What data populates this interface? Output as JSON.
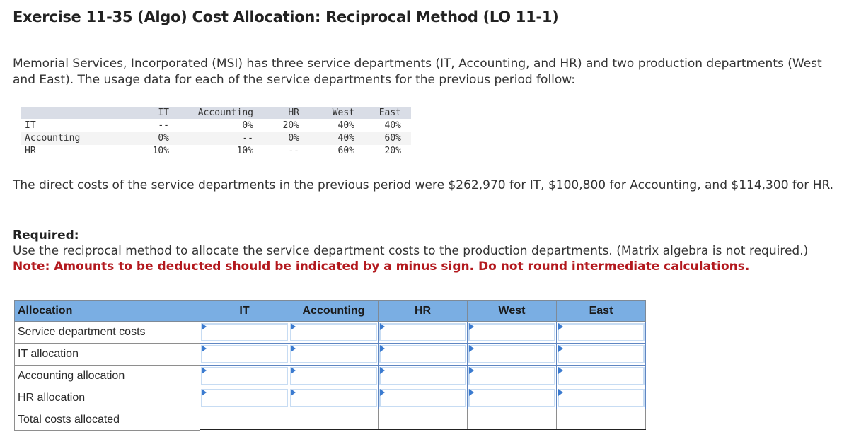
{
  "title": "Exercise 11-35 (Algo) Cost Allocation: Reciprocal Method (LO 11-1)",
  "intro": "Memorial Services, Incorporated (MSI) has three service departments (IT, Accounting, and HR) and two production departments (West and East). The usage data for each of the service departments for the previous period follow:",
  "usage_table": {
    "headers": [
      "",
      "IT",
      "Accounting",
      "HR",
      "West",
      "East"
    ],
    "rows": [
      {
        "label": "IT",
        "values": [
          "--",
          "0%",
          "20%",
          "40%",
          "40%"
        ]
      },
      {
        "label": "Accounting",
        "values": [
          "0%",
          "--",
          "0%",
          "40%",
          "60%"
        ]
      },
      {
        "label": "HR",
        "values": [
          "10%",
          "10%",
          "--",
          "60%",
          "20%"
        ]
      }
    ]
  },
  "direct_costs_text": "The direct costs of the service departments in the previous period were $262,970 for IT, $100,800 for Accounting, and $114,300 for HR.",
  "required": {
    "label": "Required:",
    "instruction": "Use the reciprocal method to allocate the service department costs to the production departments. (Matrix algebra is not required.)",
    "note": "Note: Amounts to be deducted should be indicated by a minus sign. Do not round intermediate calculations."
  },
  "allocation_table": {
    "headers": [
      "Allocation",
      "IT",
      "Accounting",
      "HR",
      "West",
      "East"
    ],
    "rows": [
      {
        "label": "Service department costs",
        "values": [
          "",
          "",
          "",
          "",
          ""
        ]
      },
      {
        "label": "IT allocation",
        "values": [
          "",
          "",
          "",
          "",
          ""
        ]
      },
      {
        "label": "Accounting allocation",
        "values": [
          "",
          "",
          "",
          "",
          ""
        ]
      },
      {
        "label": "HR allocation",
        "values": [
          "",
          "",
          "",
          "",
          ""
        ]
      },
      {
        "label": "Total costs allocated",
        "values": [
          "",
          "",
          "",
          "",
          ""
        ]
      }
    ]
  },
  "colors": {
    "header_blue": "#7aaee3",
    "note_red": "#b3191e",
    "usage_header_gray": "#d9dde6",
    "input_flag_blue": "#3b7bd0"
  }
}
